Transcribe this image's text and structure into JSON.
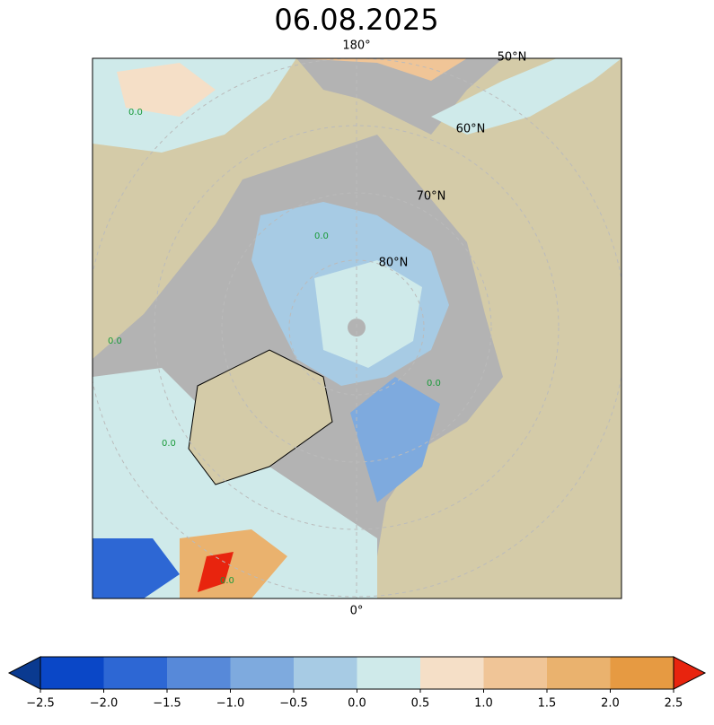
{
  "title": "06.08.2025",
  "map": {
    "meridian_labels": [
      "180°",
      "0°"
    ],
    "parallel_labels": [
      "50°N",
      "60°N",
      "70°N",
      "80°N"
    ],
    "contour_label": "0.0"
  },
  "colorbar": {
    "lim": [
      -2.5,
      2.5
    ],
    "ticks": [
      {
        "value": -2.5,
        "label": "−2.5"
      },
      {
        "value": -2.0,
        "label": "−2.0"
      },
      {
        "value": -1.5,
        "label": "−1.5"
      },
      {
        "value": -1.0,
        "label": "−1.0"
      },
      {
        "value": -0.5,
        "label": "−0.5"
      },
      {
        "value": 0,
        "label": "0.0"
      },
      {
        "value": 0.5,
        "label": "0.5"
      },
      {
        "value": 1.0,
        "label": "1.0"
      },
      {
        "value": 1.5,
        "label": "1.5"
      },
      {
        "value": 2.0,
        "label": "2.0"
      },
      {
        "value": 2.5,
        "label": "2.5"
      }
    ],
    "colors": [
      "#0a47c7",
      "#2d67d4",
      "#5789d9",
      "#7eaade",
      "#a7cbe4",
      "#cfeaea",
      "#f5dfc7",
      "#f0c597",
      "#eab26e",
      "#e69a42"
    ],
    "under_color": "#0a3a90",
    "over_color": "#e8240e"
  }
}
